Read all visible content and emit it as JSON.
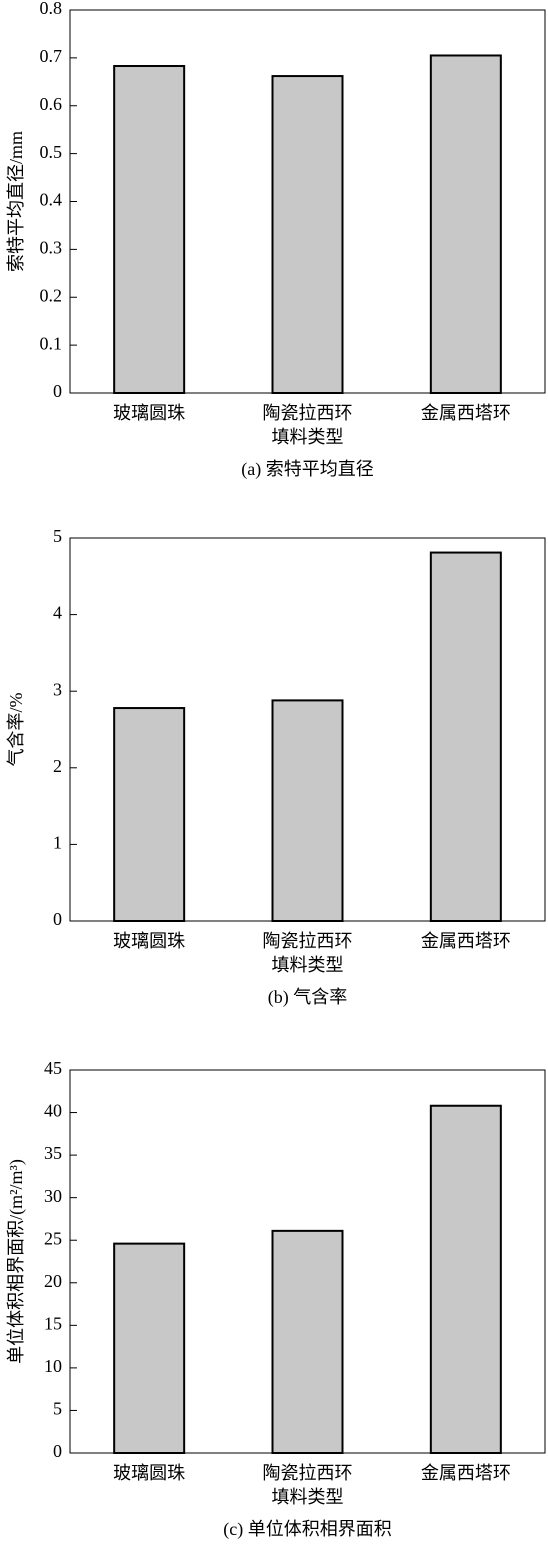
{
  "chart_data": [
    {
      "type": "bar",
      "title": "(a) 索特平均直径",
      "xlabel": "填料类型",
      "ylabel": "索特平均直径/mm",
      "categories": [
        "玻璃圆珠",
        "陶瓷拉西环",
        "金属西塔环"
      ],
      "values": [
        0.683,
        0.662,
        0.705
      ],
      "color": "#c8c8c8",
      "ylim": [
        0,
        0.8
      ],
      "yticks": [
        0,
        0.1,
        0.2,
        0.3,
        0.4,
        0.5,
        0.6,
        0.7,
        0.8
      ]
    },
    {
      "type": "bar",
      "title": "(b) 气含率",
      "xlabel": "填料类型",
      "ylabel": "气含率/%",
      "categories": [
        "玻璃圆珠",
        "陶瓷拉西环",
        "金属西塔环"
      ],
      "values": [
        2.78,
        2.88,
        4.81
      ],
      "color": "#c8c8c8",
      "ylim": [
        0,
        5
      ],
      "yticks": [
        0,
        1,
        2,
        3,
        4,
        5
      ]
    },
    {
      "type": "bar",
      "title": "(c) 单位体积相界面积",
      "xlabel": "填料类型",
      "ylabel": "单位体积相界面积/(m²/m³)",
      "categories": [
        "玻璃圆珠",
        "陶瓷拉西环",
        "金属西塔环"
      ],
      "values": [
        24.6,
        26.1,
        40.8
      ],
      "color": "#c8c8c8",
      "ylim": [
        0,
        45
      ],
      "yticks": [
        0,
        5,
        10,
        15,
        20,
        25,
        30,
        35,
        40,
        45
      ]
    }
  ]
}
